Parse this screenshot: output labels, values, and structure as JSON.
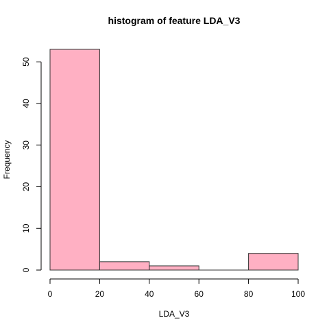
{
  "chart_data": {
    "type": "bar",
    "title": "histogram of feature LDA_V3",
    "xlabel": "LDA_V3",
    "ylabel": "Frequency",
    "bins": [
      {
        "start": 0,
        "end": 20,
        "count": 53
      },
      {
        "start": 20,
        "end": 40,
        "count": 2
      },
      {
        "start": 40,
        "end": 60,
        "count": 1
      },
      {
        "start": 60,
        "end": 80,
        "count": 0
      },
      {
        "start": 80,
        "end": 100,
        "count": 4
      }
    ],
    "xlim": [
      0,
      100
    ],
    "ylim": [
      0,
      53
    ],
    "xticks": [
      0,
      20,
      40,
      60,
      80,
      100
    ],
    "yticks": [
      0,
      10,
      20,
      30,
      40,
      50
    ],
    "bar_color": "#ffb0c3",
    "grid": false
  }
}
